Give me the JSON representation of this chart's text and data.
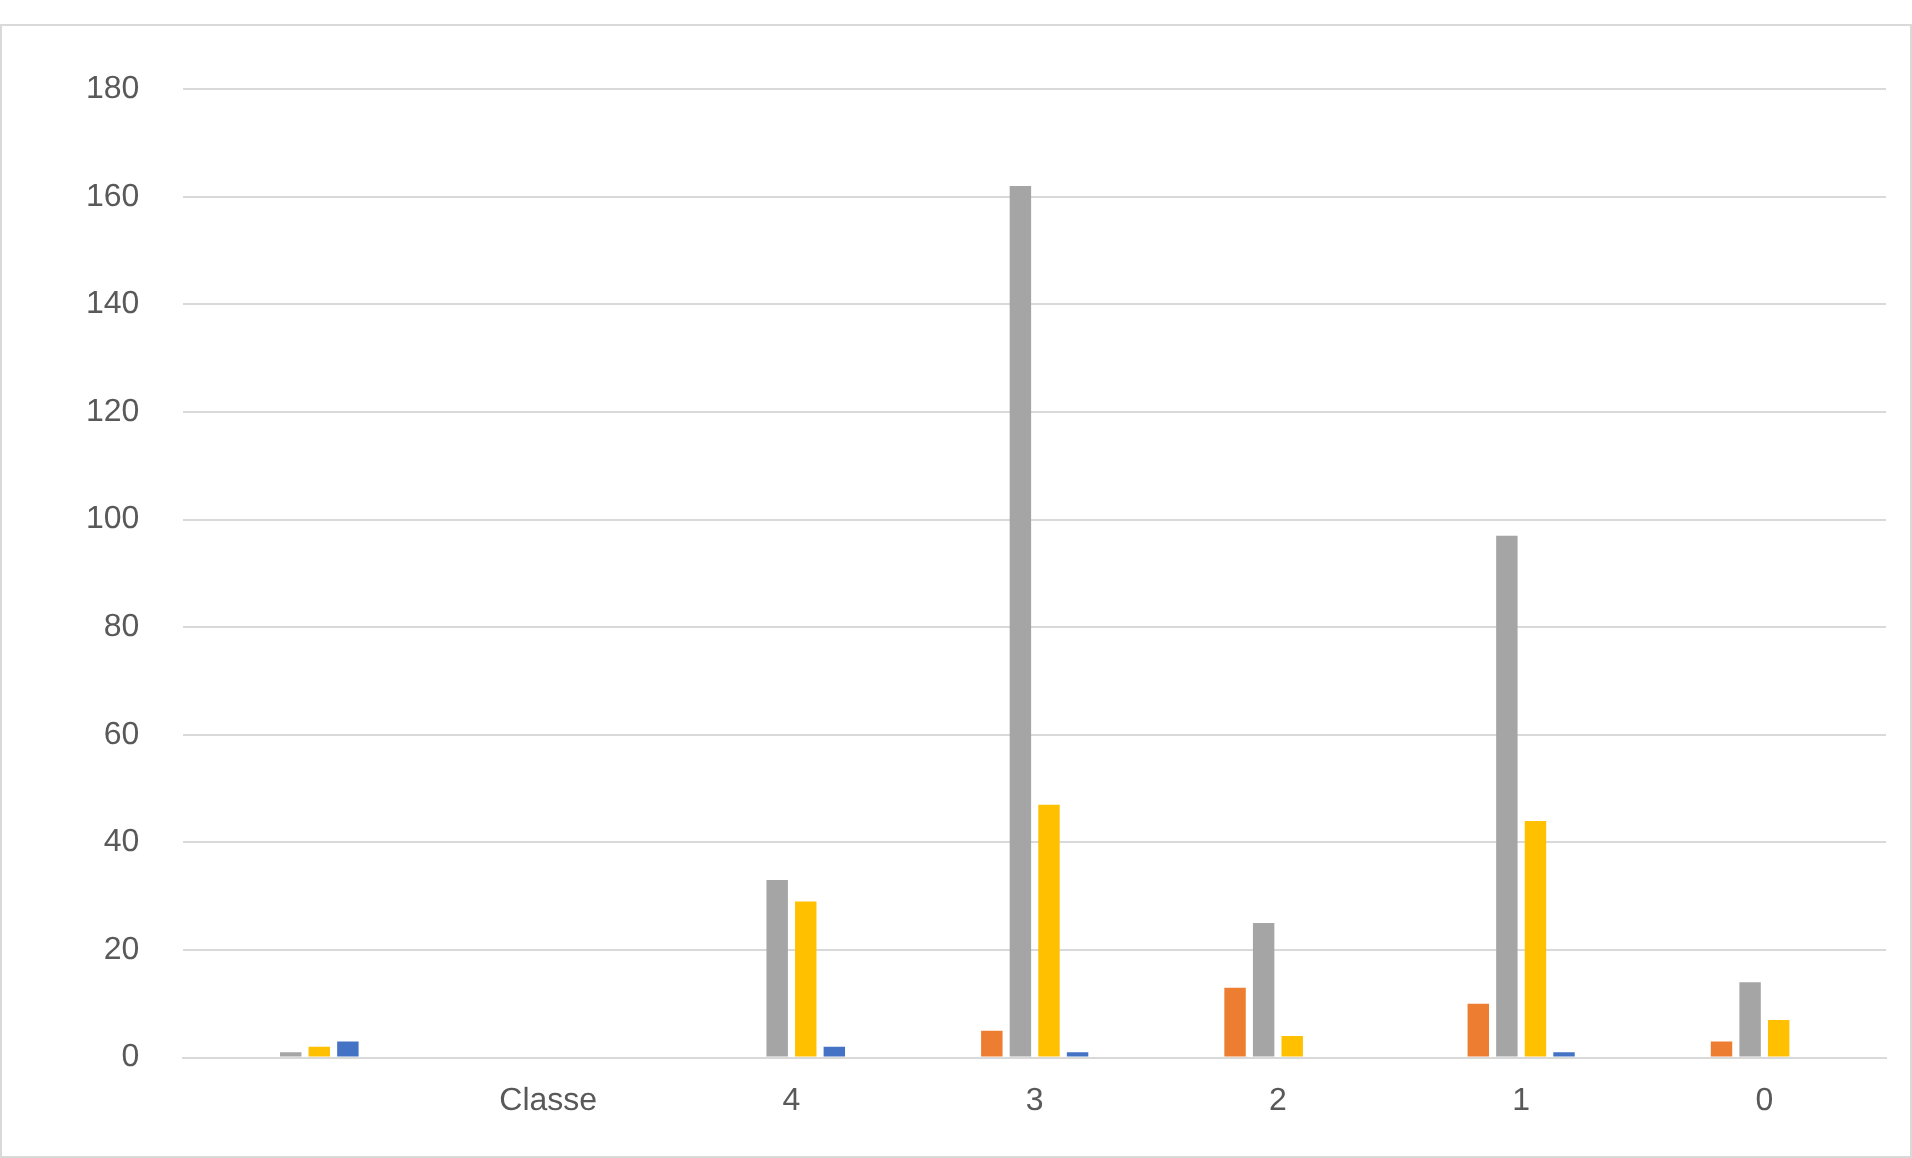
{
  "chart_data": {
    "type": "bar",
    "categories": [
      null,
      "Classe",
      "4",
      "3",
      "2",
      "1",
      "0"
    ],
    "series": [
      {
        "color": "#ed7d31",
        "values": [
          null,
          null,
          null,
          5,
          13,
          10,
          3
        ]
      },
      {
        "color": "#a5a5a5",
        "values": [
          1,
          null,
          33,
          162,
          25,
          97,
          14
        ]
      },
      {
        "color": "#ffc000",
        "values": [
          2,
          null,
          29,
          47,
          4,
          44,
          7
        ]
      },
      {
        "color": "#4472c4",
        "values": [
          3,
          null,
          2,
          1,
          null,
          1,
          null
        ]
      }
    ],
    "ylim": [
      0,
      180
    ],
    "yticks": [
      0,
      20,
      40,
      60,
      80,
      100,
      120,
      140,
      160,
      180
    ],
    "grid": "y",
    "legend": false
  }
}
